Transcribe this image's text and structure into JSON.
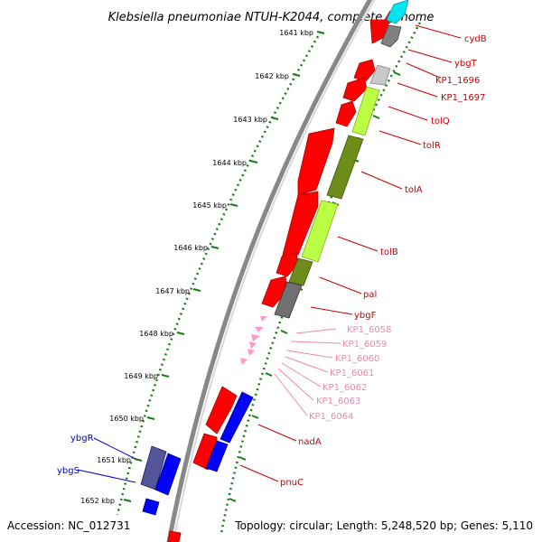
{
  "title": "Klebsiella pneumoniae NTUH-K2044, complete genome",
  "footer": {
    "accession": "Accession: NC_012731",
    "topology": "Topology: circular; Length: 5,248,520 bp; Genes: 5,110"
  },
  "colors": {
    "red_label": "#cc0000",
    "pink_label": "#ee88aa",
    "blue_label": "#0000cc",
    "ticks": "#1a7a1a"
  },
  "kbp_ticks": [
    {
      "label": "1641 kbp"
    },
    {
      "label": "1642 kbp"
    },
    {
      "label": "1643 kbp"
    },
    {
      "label": "1644 kbp"
    },
    {
      "label": "1645 kbp"
    },
    {
      "label": "1646 kbp"
    },
    {
      "label": "1647 kbp"
    },
    {
      "label": "1648 kbp"
    },
    {
      "label": "1649 kbp"
    },
    {
      "label": "1650 kbp"
    },
    {
      "label": "1651 kbp"
    },
    {
      "label": "1652 kbp"
    }
  ],
  "genes_right": [
    {
      "label": "cydB"
    },
    {
      "label": "ybgT"
    },
    {
      "label": "KP1_1696"
    },
    {
      "label": "KP1_1697"
    },
    {
      "label": "tolQ"
    },
    {
      "label": "tolR"
    },
    {
      "label": "tolA"
    },
    {
      "label": "tolB"
    },
    {
      "label": "pal"
    },
    {
      "label": "ybgF"
    },
    {
      "label": "KP1_6058"
    },
    {
      "label": "KP1_6059"
    },
    {
      "label": "KP1_6060"
    },
    {
      "label": "KP1_6061"
    },
    {
      "label": "KP1_6062"
    },
    {
      "label": "KP1_6063"
    },
    {
      "label": "KP1_6064"
    },
    {
      "label": "nadA"
    },
    {
      "label": "pnuC"
    }
  ],
  "genes_left": [
    {
      "label": "ybgR"
    },
    {
      "label": "ybgS"
    }
  ]
}
